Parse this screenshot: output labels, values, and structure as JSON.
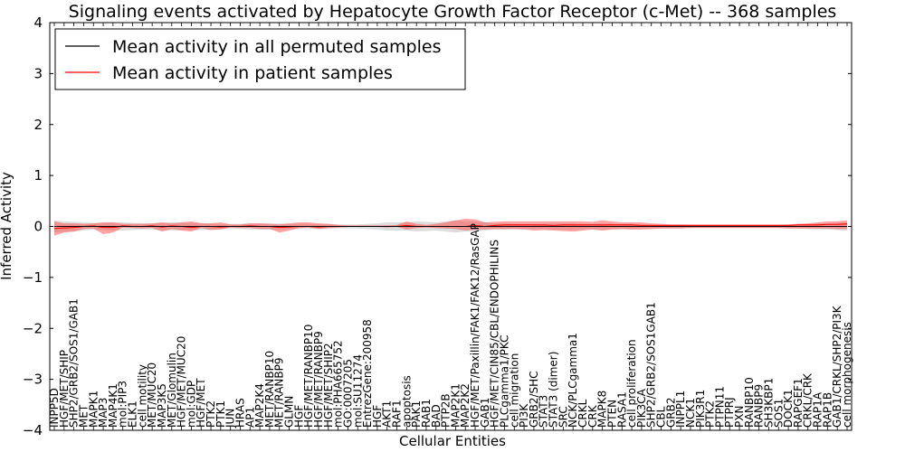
{
  "chart_data": {
    "type": "line",
    "title": "Signaling events activated by Hepatocyte Growth Factor Receptor (c-Met) -- 368 samples",
    "xlabel": "Cellular Entities",
    "ylabel": "Inferred Activity",
    "ylim": [
      -4,
      4
    ],
    "yticks": [
      4,
      3,
      2,
      1,
      0,
      -1,
      -2,
      -3,
      -4
    ],
    "ytick_labels": [
      "4",
      "3",
      "2",
      "1",
      "0",
      "−1",
      "−2",
      "−3",
      "−4"
    ],
    "legend": {
      "placement": "top-left",
      "entries": [
        {
          "label": "Mean activity in all permuted samples",
          "color": "#000000"
        },
        {
          "label": "Mean activity in patient samples",
          "color": "#ff0000"
        }
      ]
    },
    "categories": [
      "INPP5D",
      "HGF/MET/SHIP",
      "SHP2/GRB2/SOS1/GAB1",
      "MET",
      "MAPK1",
      "MAP3",
      "MAP4K1",
      "mol:PIP3",
      "ELK1",
      "cell motility",
      "MET/MUC20",
      "MAP3K5",
      "MET/Glomulin",
      "HGF/MET/MUC20",
      "mol:GDP",
      "HGF/MET",
      "PTK2",
      "PTK1",
      "JUN",
      "HRAS",
      "AP1",
      "MAP2K4",
      "MET/RANBP10",
      "MET/RANBP9",
      "GLMN",
      "HGF",
      "HGF/MET/RANBP10",
      "HGF/MET/RANBP9",
      "HGF/MET/SHIP2",
      "mol:PHA665752",
      "GO:0007205",
      "mol:SU11274",
      "EntrezGene:200958",
      "HGF",
      "AKT1",
      "RAF1",
      "apoptosis",
      "PAK1",
      "RAB1",
      "BAD",
      "PTP2B",
      "MAP2K1",
      "MAP2K2",
      "HGF/MET/Paxillin/FAK1/FAK12/RasGAP",
      "GAB1",
      "HGF/MET/CIN85/CBL/ENDOPHILINS",
      "PLCgamma1/PKC",
      "cell migration",
      "PI3K",
      "GRB2/SHC",
      "STAT3",
      "STAT3 (dimer)",
      "SRC",
      "NCK/PLCgamma1",
      "CRKL",
      "CRK",
      "MAPK8",
      "PTEN",
      "RASA1",
      "cell proliferation",
      "PIK3CA",
      "SHP2/GRB2/SOS1GAB1",
      "CBL",
      "GRB2",
      "INPPL1",
      "NCK1",
      "PIK3R1",
      "PTK2",
      "PTPN11",
      "PTPRJ",
      "PXN",
      "RANBP10",
      "RANBP9",
      "SH3KBP1",
      "SOS1",
      "DOCK1",
      "RAPGEF1",
      "CRKL/CRK",
      "RAP1A",
      "RAP1B",
      "GAB1/CRKL/SHP2/PI3K",
      "cell morphogenesis"
    ],
    "series": [
      {
        "name": "Mean activity in all permuted samples",
        "color": "#000000",
        "values": [
          0.0,
          0.0,
          0.0,
          0.0,
          0.0,
          0.0,
          0.0,
          0.0,
          0.0,
          0.0,
          0.0,
          0.0,
          0.0,
          0.0,
          0.0,
          0.0,
          0.0,
          0.0,
          0.0,
          0.0,
          0.0,
          0.0,
          0.0,
          0.0,
          0.0,
          0.0,
          0.0,
          0.0,
          0.0,
          0.0,
          0.0,
          0.0,
          0.0,
          0.0,
          0.0,
          0.0,
          0.0,
          0.0,
          0.0,
          0.0,
          0.0,
          0.0,
          0.0,
          0.0,
          0.0,
          0.0,
          0.0,
          0.0,
          0.0,
          0.0,
          0.0,
          0.0,
          0.0,
          0.0,
          0.0,
          0.0,
          0.0,
          0.0,
          0.0,
          0.0,
          0.0,
          0.0,
          0.0,
          0.0,
          0.0,
          0.0,
          0.0,
          0.0,
          0.0,
          0.0,
          0.0,
          0.0,
          0.0,
          0.0,
          0.0,
          0.0,
          0.0,
          0.0,
          0.0,
          0.0,
          0.0,
          0.0
        ],
        "band_lower": [
          -0.12,
          -0.1,
          -0.1,
          -0.08,
          -0.06,
          -0.07,
          -0.08,
          -0.08,
          -0.07,
          -0.06,
          -0.06,
          -0.07,
          -0.08,
          -0.07,
          -0.07,
          -0.07,
          -0.06,
          -0.05,
          -0.05,
          -0.05,
          -0.06,
          -0.06,
          -0.06,
          -0.06,
          -0.05,
          -0.05,
          -0.05,
          -0.05,
          -0.05,
          -0.04,
          -0.04,
          -0.04,
          -0.05,
          -0.06,
          -0.08,
          -0.08,
          -0.08,
          -0.1,
          -0.09,
          -0.08,
          -0.1,
          -0.12,
          -0.1,
          -0.1,
          -0.08,
          -0.06,
          -0.06,
          -0.05,
          -0.05,
          -0.05,
          -0.05,
          -0.06,
          -0.06,
          -0.06,
          -0.05,
          -0.05,
          -0.06,
          -0.05,
          -0.05,
          -0.05,
          -0.04,
          -0.04,
          -0.04,
          -0.04,
          -0.04,
          -0.03,
          -0.03,
          -0.03,
          -0.03,
          -0.03,
          -0.03,
          -0.03,
          -0.03,
          -0.03,
          -0.03,
          -0.04,
          -0.04,
          -0.05,
          -0.06,
          -0.06,
          -0.07,
          -0.08
        ],
        "band_upper": [
          0.12,
          0.1,
          0.09,
          0.08,
          0.07,
          0.07,
          0.08,
          0.08,
          0.07,
          0.06,
          0.06,
          0.07,
          0.08,
          0.07,
          0.07,
          0.07,
          0.06,
          0.05,
          0.05,
          0.05,
          0.06,
          0.06,
          0.06,
          0.06,
          0.05,
          0.05,
          0.05,
          0.05,
          0.05,
          0.04,
          0.04,
          0.04,
          0.05,
          0.06,
          0.08,
          0.08,
          0.08,
          0.1,
          0.09,
          0.08,
          0.1,
          0.12,
          0.1,
          0.1,
          0.08,
          0.06,
          0.06,
          0.05,
          0.05,
          0.05,
          0.05,
          0.06,
          0.06,
          0.06,
          0.05,
          0.05,
          0.06,
          0.05,
          0.05,
          0.05,
          0.04,
          0.04,
          0.04,
          0.04,
          0.04,
          0.03,
          0.03,
          0.03,
          0.03,
          0.03,
          0.03,
          0.03,
          0.03,
          0.03,
          0.03,
          0.04,
          0.04,
          0.05,
          0.06,
          0.06,
          0.07,
          0.08
        ]
      },
      {
        "name": "Mean activity in patient samples",
        "color": "#ff0000",
        "values": [
          -0.04,
          -0.03,
          -0.02,
          0.0,
          0.01,
          -0.02,
          -0.02,
          0.01,
          0.0,
          0.0,
          0.01,
          -0.01,
          0.01,
          0.0,
          -0.02,
          0.0,
          0.0,
          -0.01,
          0.0,
          0.0,
          0.01,
          0.0,
          0.0,
          -0.02,
          -0.01,
          0.0,
          0.0,
          -0.01,
          0.0,
          0.0,
          0.0,
          0.0,
          0.0,
          0.0,
          0.0,
          0.0,
          0.02,
          0.0,
          0.0,
          0.0,
          0.0,
          0.0,
          0.0,
          0.02,
          0.0,
          0.02,
          0.03,
          0.03,
          0.03,
          0.03,
          0.03,
          0.02,
          0.03,
          0.03,
          0.03,
          0.03,
          0.03,
          0.03,
          0.03,
          0.03,
          0.02,
          0.02,
          0.02,
          0.02,
          0.02,
          0.02,
          0.02,
          0.02,
          0.02,
          0.02,
          0.02,
          0.02,
          0.02,
          0.02,
          0.02,
          0.02,
          0.03,
          0.03,
          0.03,
          0.04,
          0.04,
          0.05
        ],
        "band_lower": [
          -0.18,
          -0.12,
          -0.1,
          -0.05,
          -0.04,
          -0.15,
          -0.12,
          -0.02,
          -0.03,
          -0.04,
          -0.03,
          -0.1,
          -0.05,
          -0.08,
          -0.1,
          -0.03,
          -0.07,
          -0.06,
          -0.02,
          -0.03,
          -0.03,
          -0.05,
          -0.05,
          -0.12,
          -0.08,
          -0.03,
          -0.02,
          -0.05,
          -0.03,
          -0.02,
          -0.01,
          -0.01,
          -0.01,
          -0.01,
          -0.02,
          -0.01,
          -0.06,
          -0.03,
          -0.02,
          -0.03,
          -0.04,
          -0.05,
          -0.08,
          -0.06,
          -0.06,
          -0.05,
          -0.05,
          -0.05,
          -0.06,
          -0.08,
          -0.07,
          -0.08,
          -0.09,
          -0.1,
          -0.08,
          -0.06,
          -0.08,
          -0.06,
          -0.05,
          -0.06,
          -0.06,
          -0.05,
          -0.04,
          -0.04,
          -0.04,
          -0.03,
          -0.03,
          -0.03,
          -0.03,
          -0.03,
          -0.03,
          -0.03,
          -0.03,
          -0.03,
          -0.03,
          -0.04,
          -0.04,
          -0.04,
          -0.04,
          -0.04,
          -0.05,
          -0.05
        ],
        "band_upper": [
          0.1,
          0.06,
          0.06,
          0.05,
          0.06,
          0.08,
          0.08,
          0.05,
          0.05,
          0.05,
          0.06,
          0.08,
          0.06,
          0.08,
          0.1,
          0.06,
          0.06,
          0.08,
          0.04,
          0.04,
          0.06,
          0.06,
          0.05,
          0.04,
          0.06,
          0.08,
          0.08,
          0.06,
          0.05,
          0.03,
          0.02,
          0.02,
          0.02,
          0.02,
          0.02,
          0.03,
          0.1,
          0.05,
          0.03,
          0.05,
          0.08,
          0.12,
          0.15,
          0.14,
          0.08,
          0.09,
          0.1,
          0.1,
          0.1,
          0.1,
          0.1,
          0.1,
          0.1,
          0.1,
          0.1,
          0.09,
          0.12,
          0.1,
          0.08,
          0.08,
          0.08,
          0.06,
          0.05,
          0.04,
          0.04,
          0.04,
          0.04,
          0.04,
          0.04,
          0.04,
          0.04,
          0.04,
          0.04,
          0.04,
          0.04,
          0.04,
          0.05,
          0.06,
          0.08,
          0.1,
          0.1,
          0.12
        ]
      }
    ]
  }
}
